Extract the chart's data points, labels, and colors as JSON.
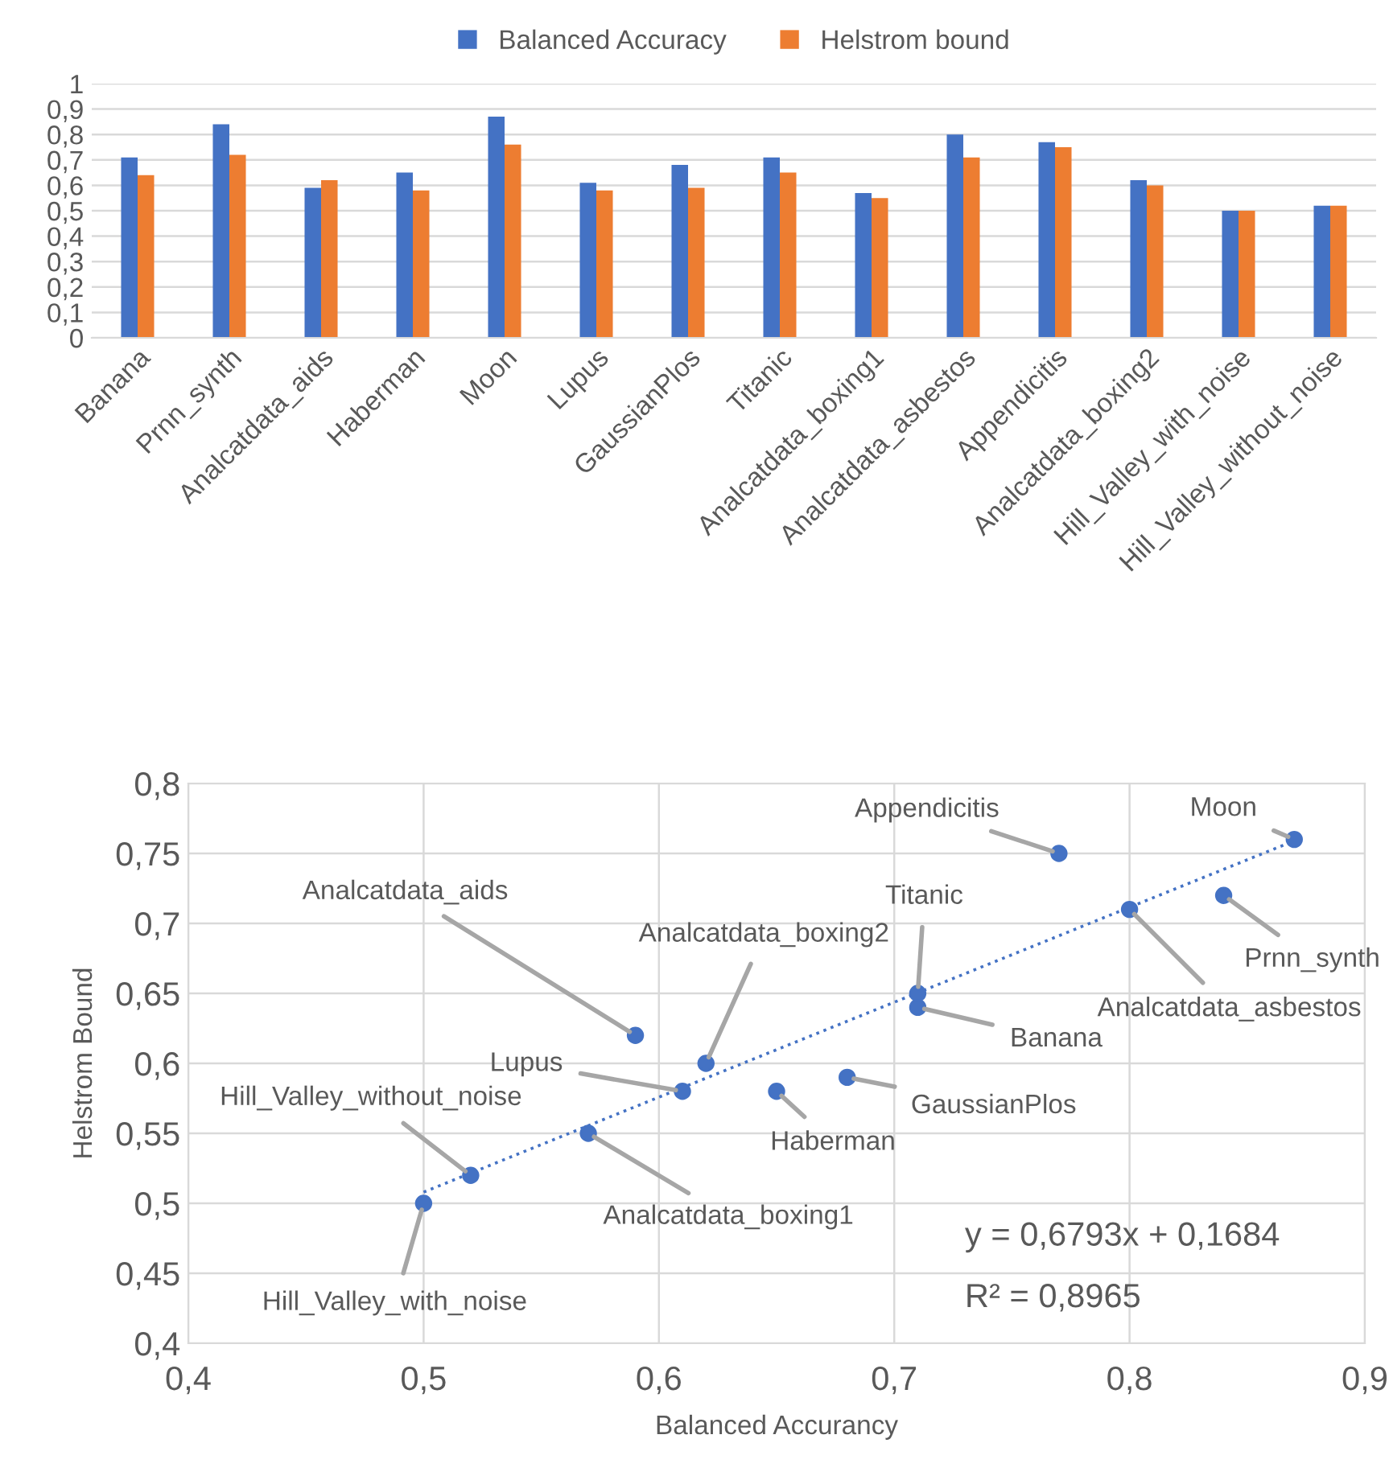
{
  "chart_data": [
    {
      "type": "bar",
      "categories": [
        "Banana",
        "Prnn_synth",
        "Analcatdata_aids",
        "Haberman",
        "Moon",
        "Lupus",
        "GaussianPlos",
        "Titanic",
        "Analcatdata_boxing1",
        "Analcatdata_asbestos",
        "Appendicitis",
        "Analcatdata_boxing2",
        "Hill_Valley_with_noise",
        "Hill_Valley_without_noise"
      ],
      "series": [
        {
          "name": "Balanced Accuracy",
          "color": "#4472c4",
          "values": [
            0.71,
            0.84,
            0.59,
            0.65,
            0.87,
            0.61,
            0.68,
            0.71,
            0.57,
            0.8,
            0.77,
            0.62,
            0.5,
            0.52
          ]
        },
        {
          "name": "Helstrom bound",
          "color": "#ed7d31",
          "values": [
            0.64,
            0.72,
            0.62,
            0.58,
            0.76,
            0.58,
            0.59,
            0.65,
            0.55,
            0.71,
            0.75,
            0.6,
            0.5,
            0.52
          ]
        }
      ],
      "ylim": [
        0,
        1
      ],
      "yticks": [
        0,
        {
          "value": 0.1,
          "label": "0,1"
        },
        {
          "value": 0.2,
          "label": "0,2"
        },
        {
          "value": 0.3,
          "label": "0,3"
        },
        {
          "value": 0.4,
          "label": "0,4"
        },
        {
          "value": 0.5,
          "label": "0,5"
        },
        {
          "value": 0.6,
          "label": "0,6"
        },
        {
          "value": 0.7,
          "label": "0,7"
        },
        {
          "value": 0.8,
          "label": "0,8"
        },
        {
          "value": 0.9,
          "label": "0,9"
        },
        1
      ],
      "grid": "y",
      "legend": "top"
    },
    {
      "type": "scatter",
      "xlabel": "Balanced Accurancy",
      "ylabel": "Helstrom Bound",
      "series": [
        {
          "type": "scatter",
          "color": "#4472c4",
          "marker": "circle",
          "x": [
            0.71,
            0.84,
            0.59,
            0.65,
            0.87,
            0.61,
            0.68,
            0.71,
            0.57,
            0.8,
            0.77,
            0.62,
            0.5,
            0.52
          ],
          "values": [
            0.64,
            0.72,
            0.62,
            0.58,
            0.76,
            0.58,
            0.59,
            0.65,
            0.55,
            0.71,
            0.75,
            0.6,
            0.5,
            0.52
          ]
        },
        {
          "type": "line",
          "color": "#4472c4",
          "line_style": "dotted",
          "x": [
            0.5,
            0.87
          ],
          "values": [
            0.508,
            0.759
          ]
        }
      ],
      "xlim": [
        0.4,
        0.9
      ],
      "xticks": [
        {
          "value": 0.4,
          "label": "0,4"
        },
        {
          "value": 0.5,
          "label": "0,5"
        },
        {
          "value": 0.6,
          "label": "0,6"
        },
        {
          "value": 0.7,
          "label": "0,7"
        },
        {
          "value": 0.8,
          "label": "0,8"
        },
        {
          "value": 0.9,
          "label": "0,9"
        }
      ],
      "ylim": [
        0.4,
        0.8
      ],
      "yticks": [
        {
          "value": 0.4,
          "label": "0,4"
        },
        {
          "value": 0.45,
          "label": "0,45"
        },
        {
          "value": 0.5,
          "label": "0,5"
        },
        {
          "value": 0.55,
          "label": "0,55"
        },
        {
          "value": 0.6,
          "label": "0,6"
        },
        {
          "value": 0.65,
          "label": "0,65"
        },
        {
          "value": 0.7,
          "label": "0,7"
        },
        {
          "value": 0.75,
          "label": "0,75"
        },
        {
          "value": 0.8,
          "label": "0,8"
        }
      ],
      "grid": true,
      "annotations": [
        {
          "text": "Banana",
          "x": 0.71,
          "y": 0.64
        },
        {
          "text": "Prnn_synth",
          "x": 0.84,
          "y": 0.72
        },
        {
          "text": "Analcatdata_aids",
          "x": 0.59,
          "y": 0.62
        },
        {
          "text": "Haberman",
          "x": 0.65,
          "y": 0.58
        },
        {
          "text": "Moon",
          "x": 0.87,
          "y": 0.76
        },
        {
          "text": "Lupus",
          "x": 0.61,
          "y": 0.58
        },
        {
          "text": "GaussianPlos",
          "x": 0.68,
          "y": 0.59
        },
        {
          "text": "Titanic",
          "x": 0.71,
          "y": 0.65
        },
        {
          "text": "Analcatdata_boxing1",
          "x": 0.57,
          "y": 0.55
        },
        {
          "text": "Analcatdata_asbestos",
          "x": 0.8,
          "y": 0.71
        },
        {
          "text": "Appendicitis",
          "x": 0.77,
          "y": 0.75
        },
        {
          "text": "Analcatdata_boxing2",
          "x": 0.62,
          "y": 0.6
        },
        {
          "text": "Hill_Valley_with_noise",
          "x": 0.5,
          "y": 0.5
        },
        {
          "text": "Hill_Valley_without_noise",
          "x": 0.52,
          "y": 0.52
        },
        "y = 0,6793x + 0,1684",
        "R² = 0,8965"
      ]
    }
  ]
}
